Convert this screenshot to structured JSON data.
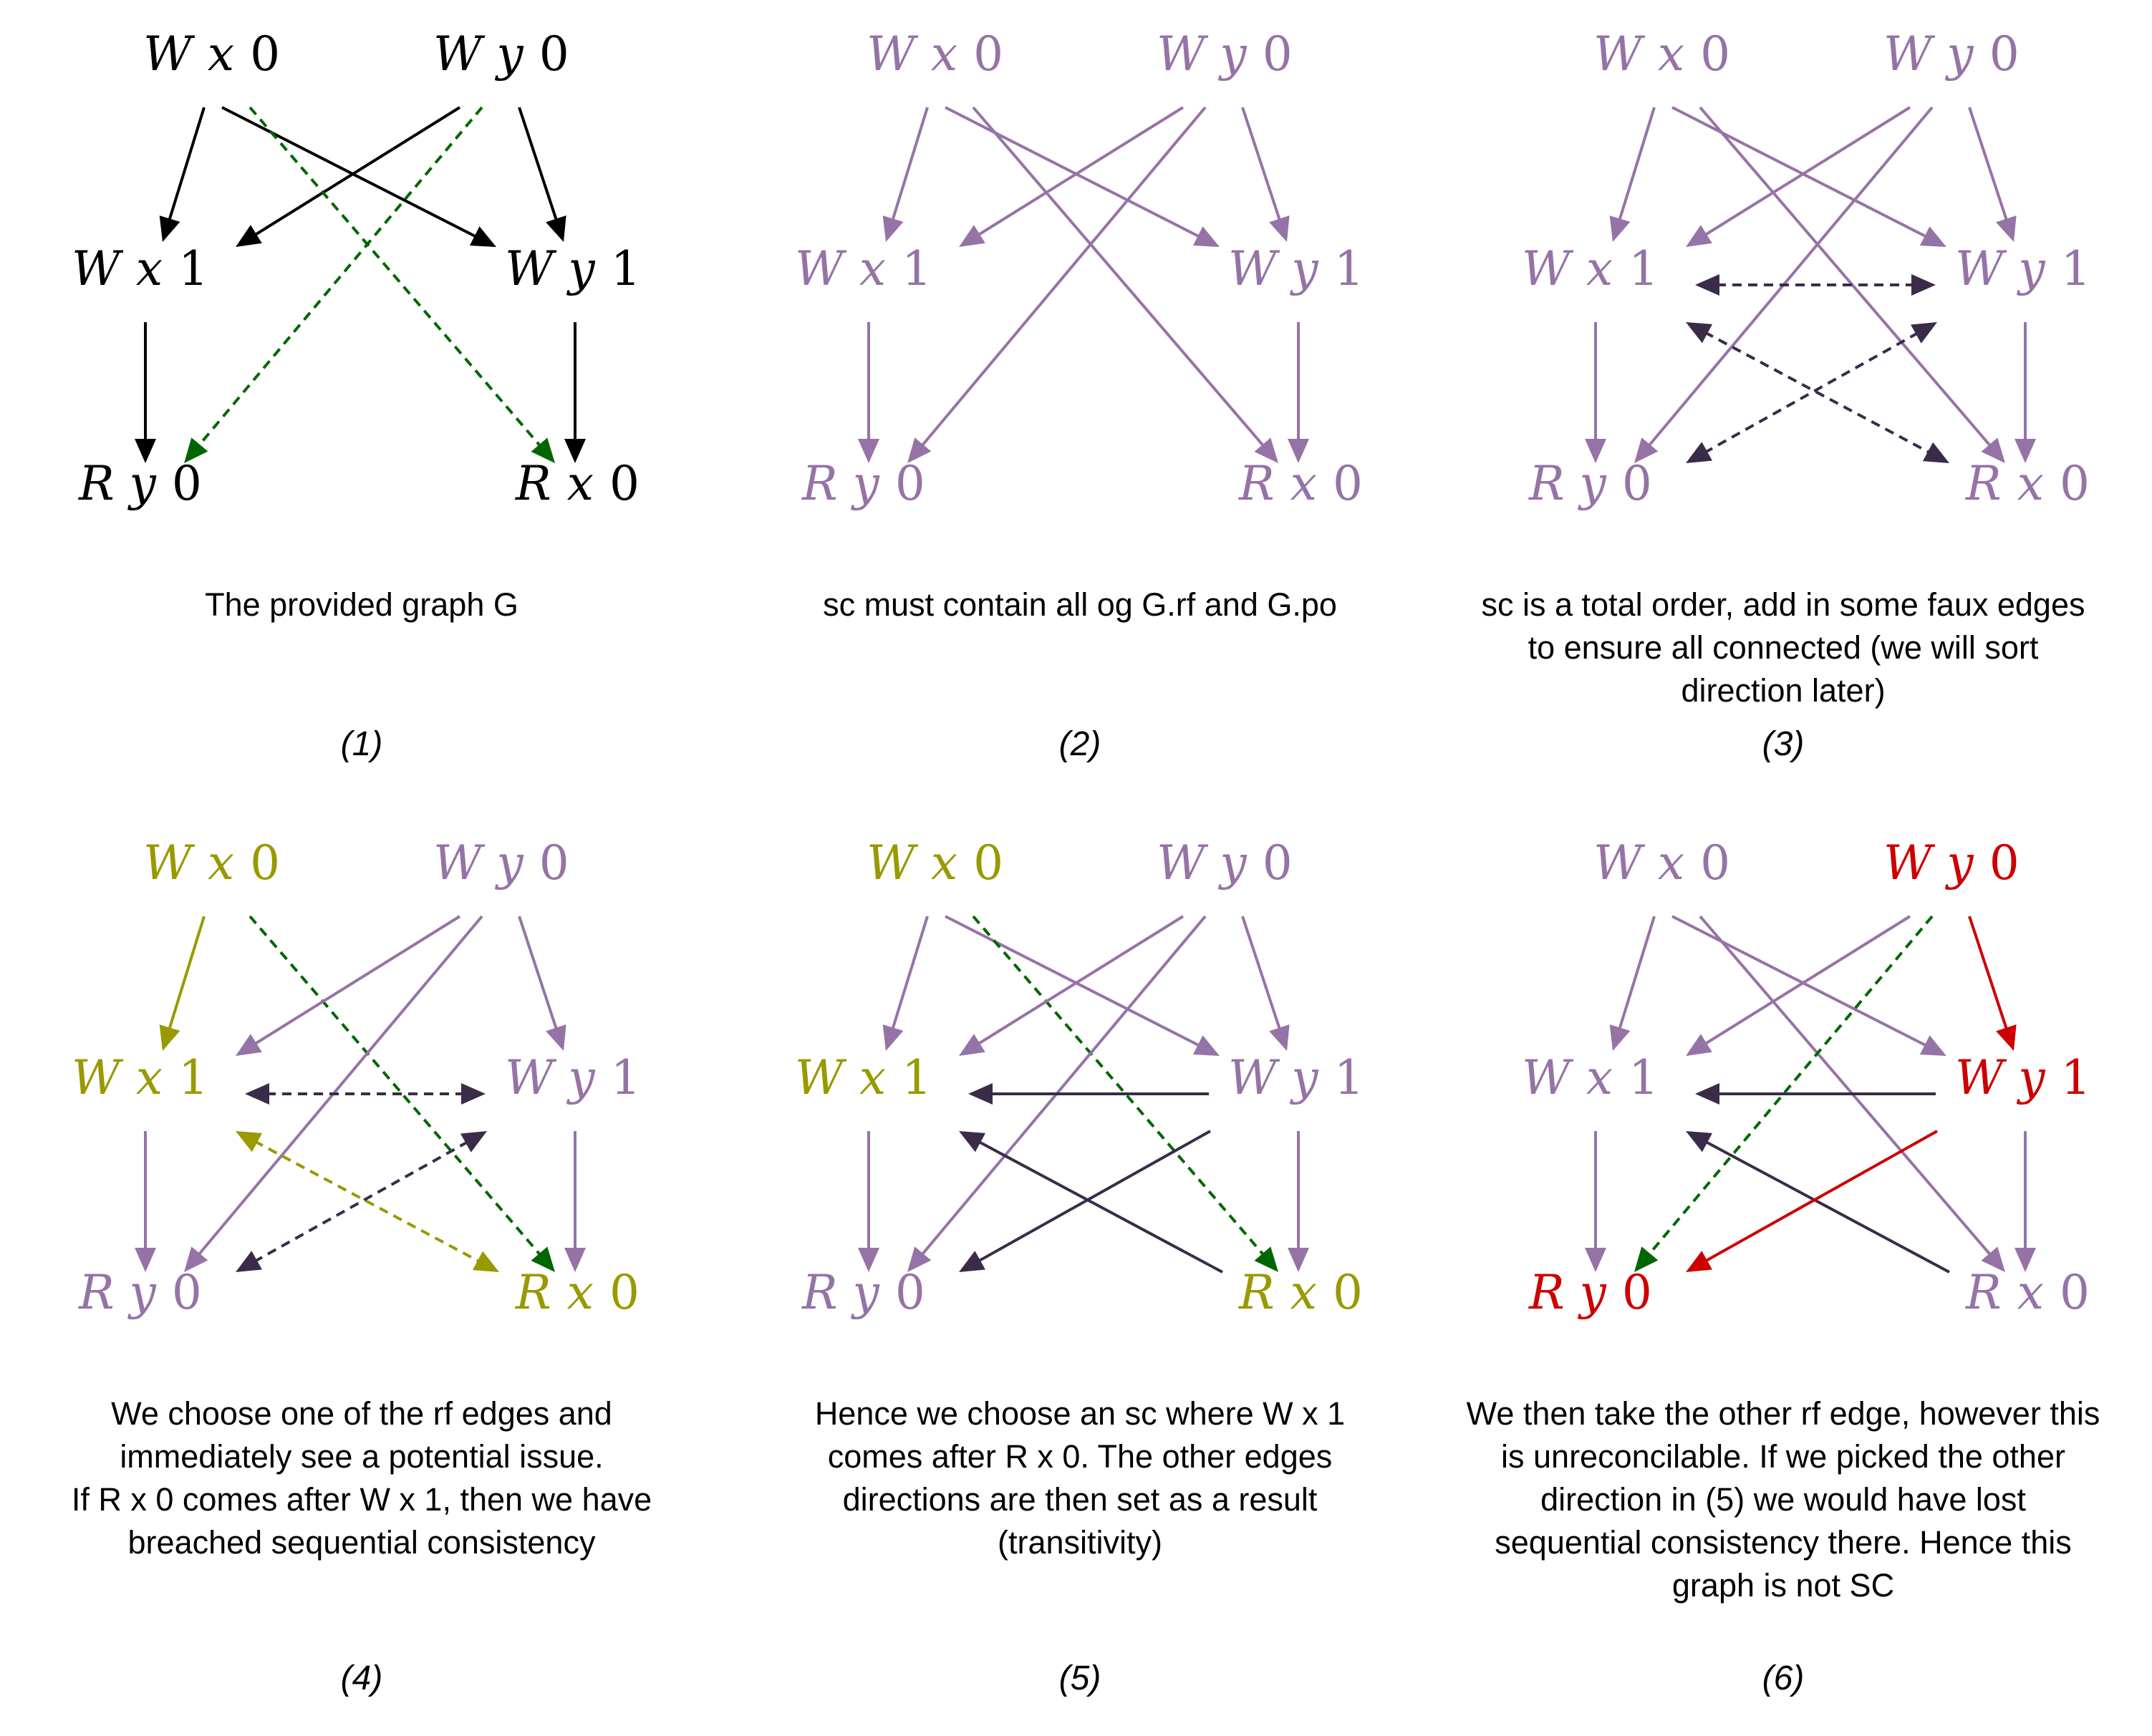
{
  "colors": {
    "black": "#000000",
    "purple": "#9673a6",
    "dark": "#3a2c48",
    "green": "#006600",
    "olive": "#999900",
    "red": "#cc0000"
  },
  "panels": [
    {
      "id": "1",
      "label": "(1)",
      "caption": [
        "The provided graph G"
      ],
      "nodes": {
        "Wx0": {
          "parts": [
            "W",
            "x",
            "0"
          ],
          "color": "black"
        },
        "Wy0": {
          "parts": [
            "W",
            "y",
            "0"
          ],
          "color": "black"
        },
        "Wx1": {
          "parts": [
            "W",
            "x",
            "1"
          ],
          "color": "black"
        },
        "Wy1": {
          "parts": [
            "W",
            "y",
            "1"
          ],
          "color": "black"
        },
        "Ry0": {
          "parts": [
            "R",
            "y",
            "0"
          ],
          "color": "black"
        },
        "Rx0": {
          "parts": [
            "R",
            "x",
            "0"
          ],
          "color": "black"
        }
      },
      "edges": [
        {
          "from": "Wx0",
          "to": "Wx1",
          "color": "black",
          "style": "solid"
        },
        {
          "from": "Wx0",
          "to": "Wy1",
          "color": "black",
          "style": "solid"
        },
        {
          "from": "Wy0",
          "to": "Wx1",
          "color": "black",
          "style": "solid"
        },
        {
          "from": "Wy0",
          "to": "Wy1",
          "color": "black",
          "style": "solid"
        },
        {
          "from": "Wx1",
          "to": "Ry0",
          "color": "black",
          "style": "solid"
        },
        {
          "from": "Wy1",
          "to": "Rx0",
          "color": "black",
          "style": "solid"
        },
        {
          "from": "Wy0",
          "to": "Ry0",
          "color": "green",
          "style": "dashed"
        },
        {
          "from": "Wx0",
          "to": "Rx0",
          "color": "green",
          "style": "dashed"
        }
      ]
    },
    {
      "id": "2",
      "label": "(2)",
      "caption": [
        "sc must contain all og G.rf and G.po"
      ],
      "nodes": {
        "Wx0": {
          "parts": [
            "W",
            "x",
            "0"
          ],
          "color": "purple"
        },
        "Wy0": {
          "parts": [
            "W",
            "y",
            "0"
          ],
          "color": "purple"
        },
        "Wx1": {
          "parts": [
            "W",
            "x",
            "1"
          ],
          "color": "purple"
        },
        "Wy1": {
          "parts": [
            "W",
            "y",
            "1"
          ],
          "color": "purple"
        },
        "Ry0": {
          "parts": [
            "R",
            "y",
            "0"
          ],
          "color": "purple"
        },
        "Rx0": {
          "parts": [
            "R",
            "x",
            "0"
          ],
          "color": "purple"
        }
      },
      "edges": [
        {
          "from": "Wx0",
          "to": "Wx1",
          "color": "purple",
          "style": "solid"
        },
        {
          "from": "Wx0",
          "to": "Wy1",
          "color": "purple",
          "style": "solid"
        },
        {
          "from": "Wx0",
          "to": "Rx0",
          "color": "purple",
          "style": "solid"
        },
        {
          "from": "Wy0",
          "to": "Wx1",
          "color": "purple",
          "style": "solid"
        },
        {
          "from": "Wy0",
          "to": "Wy1",
          "color": "purple",
          "style": "solid"
        },
        {
          "from": "Wy0",
          "to": "Ry0",
          "color": "purple",
          "style": "solid"
        },
        {
          "from": "Wx1",
          "to": "Ry0",
          "color": "purple",
          "style": "solid"
        },
        {
          "from": "Wy1",
          "to": "Rx0",
          "color": "purple",
          "style": "solid"
        }
      ]
    },
    {
      "id": "3",
      "label": "(3)",
      "caption": [
        "sc is a total order, add in some faux edges",
        "to ensure all connected (we will sort",
        "direction later)"
      ],
      "nodes": {
        "Wx0": {
          "parts": [
            "W",
            "x",
            "0"
          ],
          "color": "purple"
        },
        "Wy0": {
          "parts": [
            "W",
            "y",
            "0"
          ],
          "color": "purple"
        },
        "Wx1": {
          "parts": [
            "W",
            "x",
            "1"
          ],
          "color": "purple"
        },
        "Wy1": {
          "parts": [
            "W",
            "y",
            "1"
          ],
          "color": "purple"
        },
        "Ry0": {
          "parts": [
            "R",
            "y",
            "0"
          ],
          "color": "purple"
        },
        "Rx0": {
          "parts": [
            "R",
            "x",
            "0"
          ],
          "color": "purple"
        }
      },
      "edges": [
        {
          "from": "Wx0",
          "to": "Wx1",
          "color": "purple",
          "style": "solid"
        },
        {
          "from": "Wx0",
          "to": "Wy1",
          "color": "purple",
          "style": "solid"
        },
        {
          "from": "Wx0",
          "to": "Rx0",
          "color": "purple",
          "style": "solid"
        },
        {
          "from": "Wy0",
          "to": "Wx1",
          "color": "purple",
          "style": "solid"
        },
        {
          "from": "Wy0",
          "to": "Wy1",
          "color": "purple",
          "style": "solid"
        },
        {
          "from": "Wy0",
          "to": "Ry0",
          "color": "purple",
          "style": "solid"
        },
        {
          "from": "Wx1",
          "to": "Ry0",
          "color": "purple",
          "style": "solid"
        },
        {
          "from": "Wy1",
          "to": "Rx0",
          "color": "purple",
          "style": "solid"
        },
        {
          "from": "Wx1",
          "to": "Wy1",
          "color": "dark",
          "style": "dashed",
          "both": true
        },
        {
          "from": "Wx1",
          "to": "Rx0",
          "color": "dark",
          "style": "dashed",
          "both": true
        },
        {
          "from": "Wy1",
          "to": "Ry0",
          "color": "dark",
          "style": "dashed",
          "both": true
        }
      ]
    },
    {
      "id": "4",
      "label": "(4)",
      "caption": [
        "We choose one of the rf edges and",
        "immediately see a potential issue.",
        "",
        "If R x 0 comes after W x 1, then we have",
        "breached sequential consistency"
      ],
      "nodes": {
        "Wx0": {
          "parts": [
            "W",
            "x",
            "0"
          ],
          "color": "olive"
        },
        "Wy0": {
          "parts": [
            "W",
            "y",
            "0"
          ],
          "color": "purple"
        },
        "Wx1": {
          "parts": [
            "W",
            "x",
            "1"
          ],
          "color": "olive"
        },
        "Wy1": {
          "parts": [
            "W",
            "y",
            "1"
          ],
          "color": "purple"
        },
        "Ry0": {
          "parts": [
            "R",
            "y",
            "0"
          ],
          "color": "purple"
        },
        "Rx0": {
          "parts": [
            "R",
            "x",
            "0"
          ],
          "color": "olive"
        }
      },
      "edges": [
        {
          "from": "Wx0",
          "to": "Wx1",
          "color": "olive",
          "style": "solid"
        },
        {
          "from": "Wx0",
          "to": "Rx0",
          "color": "green",
          "style": "dashed"
        },
        {
          "from": "Wy0",
          "to": "Wx1",
          "color": "purple",
          "style": "solid"
        },
        {
          "from": "Wy0",
          "to": "Wy1",
          "color": "purple",
          "style": "solid"
        },
        {
          "from": "Wy0",
          "to": "Ry0",
          "color": "purple",
          "style": "solid"
        },
        {
          "from": "Wx1",
          "to": "Ry0",
          "color": "purple",
          "style": "solid"
        },
        {
          "from": "Wy1",
          "to": "Rx0",
          "color": "purple",
          "style": "solid"
        },
        {
          "from": "Wx1",
          "to": "Wy1",
          "color": "dark",
          "style": "dashed",
          "both": true
        },
        {
          "from": "Wx1",
          "to": "Rx0",
          "color": "olive",
          "style": "dashed",
          "both": true
        },
        {
          "from": "Wy1",
          "to": "Ry0",
          "color": "dark",
          "style": "dashed",
          "both": true
        }
      ]
    },
    {
      "id": "5",
      "label": "(5)",
      "caption": [
        "Hence we choose an sc where W x 1",
        "comes after R x 0. The other edges",
        "directions are then set as a result",
        "(transitivity)"
      ],
      "nodes": {
        "Wx0": {
          "parts": [
            "W",
            "x",
            "0"
          ],
          "color": "olive"
        },
        "Wy0": {
          "parts": [
            "W",
            "y",
            "0"
          ],
          "color": "purple"
        },
        "Wx1": {
          "parts": [
            "W",
            "x",
            "1"
          ],
          "color": "olive"
        },
        "Wy1": {
          "parts": [
            "W",
            "y",
            "1"
          ],
          "color": "purple"
        },
        "Ry0": {
          "parts": [
            "R",
            "y",
            "0"
          ],
          "color": "purple"
        },
        "Rx0": {
          "parts": [
            "R",
            "x",
            "0"
          ],
          "color": "olive"
        }
      },
      "edges": [
        {
          "from": "Wx0",
          "to": "Wx1",
          "color": "purple",
          "style": "solid"
        },
        {
          "from": "Wx0",
          "to": "Wy1",
          "color": "purple",
          "style": "solid"
        },
        {
          "from": "Wx0",
          "to": "Rx0",
          "color": "green",
          "style": "dashed"
        },
        {
          "from": "Wy0",
          "to": "Wx1",
          "color": "purple",
          "style": "solid"
        },
        {
          "from": "Wy0",
          "to": "Wy1",
          "color": "purple",
          "style": "solid"
        },
        {
          "from": "Wy0",
          "to": "Ry0",
          "color": "purple",
          "style": "solid"
        },
        {
          "from": "Wx1",
          "to": "Ry0",
          "color": "purple",
          "style": "solid"
        },
        {
          "from": "Wy1",
          "to": "Rx0",
          "color": "purple",
          "style": "solid"
        },
        {
          "from": "Wy1",
          "to": "Wx1",
          "color": "dark",
          "style": "solid"
        },
        {
          "from": "Rx0",
          "to": "Wx1",
          "color": "dark",
          "style": "solid"
        },
        {
          "from": "Wy1",
          "to": "Ry0",
          "color": "dark",
          "style": "solid"
        }
      ]
    },
    {
      "id": "6",
      "label": "(6)",
      "caption": [
        "We then take the other rf edge, however this",
        "is unreconcilable. If we picked the other",
        "direction in (5) we would have lost",
        "sequential consistency there. Hence this",
        "graph is not SC"
      ],
      "nodes": {
        "Wx0": {
          "parts": [
            "W",
            "x",
            "0"
          ],
          "color": "purple"
        },
        "Wy0": {
          "parts": [
            "W",
            "y",
            "0"
          ],
          "color": "red"
        },
        "Wx1": {
          "parts": [
            "W",
            "x",
            "1"
          ],
          "color": "purple"
        },
        "Wy1": {
          "parts": [
            "W",
            "y",
            "1"
          ],
          "color": "red"
        },
        "Ry0": {
          "parts": [
            "R",
            "y",
            "0"
          ],
          "color": "red"
        },
        "Rx0": {
          "parts": [
            "R",
            "x",
            "0"
          ],
          "color": "purple"
        }
      },
      "edges": [
        {
          "from": "Wx0",
          "to": "Wx1",
          "color": "purple",
          "style": "solid"
        },
        {
          "from": "Wx0",
          "to": "Wy1",
          "color": "purple",
          "style": "solid"
        },
        {
          "from": "Wx0",
          "to": "Rx0",
          "color": "purple",
          "style": "solid"
        },
        {
          "from": "Wy0",
          "to": "Wx1",
          "color": "purple",
          "style": "solid"
        },
        {
          "from": "Wy0",
          "to": "Wy1",
          "color": "red",
          "style": "solid"
        },
        {
          "from": "Wy0",
          "to": "Ry0",
          "color": "green",
          "style": "dashed"
        },
        {
          "from": "Wx1",
          "to": "Ry0",
          "color": "purple",
          "style": "solid"
        },
        {
          "from": "Wy1",
          "to": "Rx0",
          "color": "purple",
          "style": "solid"
        },
        {
          "from": "Wy1",
          "to": "Wx1",
          "color": "dark",
          "style": "solid"
        },
        {
          "from": "Rx0",
          "to": "Wx1",
          "color": "dark",
          "style": "solid"
        },
        {
          "from": "Wy1",
          "to": "Ry0",
          "color": "red",
          "style": "solid"
        }
      ]
    }
  ]
}
